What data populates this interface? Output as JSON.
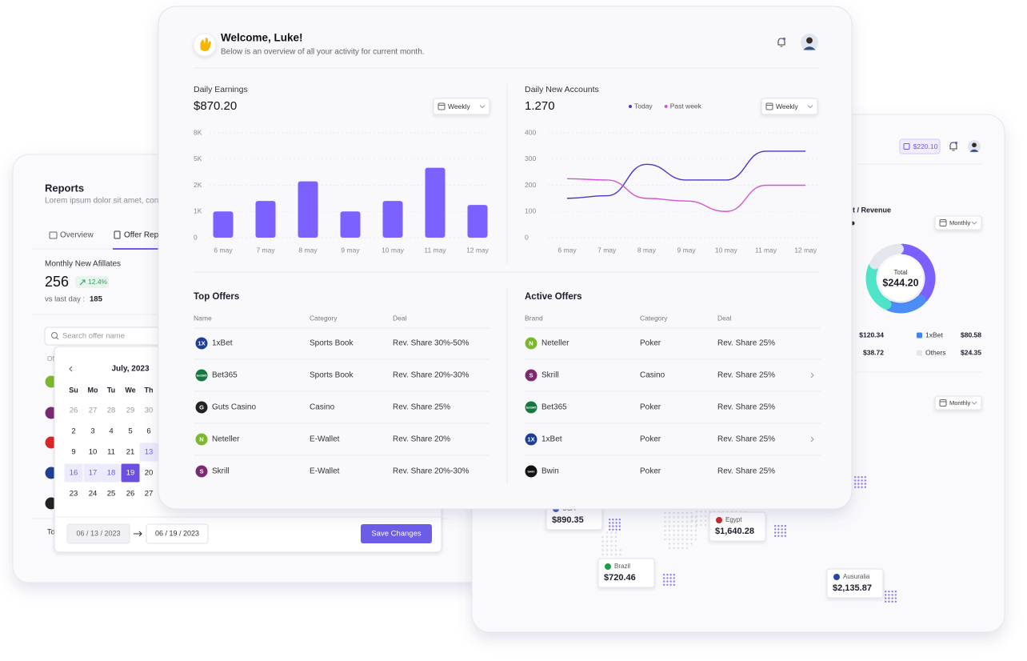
{
  "reports_panel": {
    "title": "Reports",
    "subtitle": "Lorem ipsum dolor sit amet, cons",
    "tabs": [
      "Overview",
      "Offer Repo"
    ],
    "metric_label": "Monthly New Afillates",
    "metric_value": "256",
    "metric_change": "12.4%",
    "compare_label": "vs last day :",
    "compare_value": "185",
    "search_placeholder": "Search offer name",
    "column_fragment": "Of",
    "footer_fragment": "To"
  },
  "date_picker": {
    "month": "July, 2023",
    "weekdays": [
      "Su",
      "Mo",
      "Tu",
      "We",
      "Th"
    ],
    "weeks": [
      [
        "26",
        "27",
        "28",
        "29",
        "30"
      ],
      [
        "2",
        "3",
        "4",
        "5",
        "6"
      ],
      [
        "9",
        "10",
        "11",
        "21",
        "13"
      ],
      [
        "16",
        "17",
        "18",
        "19",
        "20"
      ],
      [
        "23",
        "24",
        "25",
        "26",
        "27"
      ]
    ],
    "range_start": "06 / 13 / 2023",
    "range_end": "06 / 19 / 2023",
    "save_button": "Save Changes"
  },
  "dashboard": {
    "greeting": "Welcome, Luke!",
    "subtitle": "Below is an overview of all your activity for current month.",
    "earnings": {
      "type": "bar",
      "title": "Daily Earnings",
      "total": "$870.20",
      "period": "Weekly",
      "categories": [
        "6 may",
        "7 may",
        "8 may",
        "9 may",
        "10 may",
        "11 may",
        "12 may"
      ],
      "values": [
        1000,
        1400,
        2450,
        1000,
        1400,
        4000,
        1250
      ],
      "color": "#7b61ff",
      "ylim": [
        0,
        8000
      ],
      "yticks": [
        0,
        {
          "value": 1000,
          "label": "1K"
        },
        {
          "value": 2000,
          "label": "2K"
        },
        {
          "value": 5000,
          "label": "5K"
        },
        {
          "value": 8000,
          "label": "8K"
        }
      ]
    },
    "accounts": {
      "type": "line",
      "title": "Daily New Accounts",
      "total": "1.270",
      "period": "Weekly",
      "categories": [
        "6 may",
        "7 may",
        "8 may",
        "9 may",
        "10 may",
        "11 may",
        "12 may"
      ],
      "series": [
        {
          "name": "Today",
          "color": "#4a38c7",
          "values": [
            150,
            160,
            280,
            220,
            220,
            330,
            330
          ]
        },
        {
          "name": "Past week",
          "color": "#d653d6",
          "values": [
            225,
            220,
            150,
            140,
            100,
            200,
            200
          ]
        }
      ],
      "ylim": [
        0,
        400
      ],
      "yticks": [
        0,
        100,
        200,
        300,
        400
      ]
    },
    "top_offers": {
      "title": "Top Offers",
      "columns": [
        "Name",
        "Category",
        "Deal"
      ],
      "rows": [
        [
          "1xBet",
          "Sports Book",
          "Rev. Share 30%-50%"
        ],
        [
          "Bet365",
          "Sports Book",
          "Rev. Share 20%-30%"
        ],
        [
          "Guts Casino",
          "Casino",
          "Rev. Share 25%"
        ],
        [
          "Neteller",
          "E-Wallet",
          "Rev. Share 20%"
        ],
        [
          "Skrill",
          "E-Wallet",
          "Rev. Share 20%-30%"
        ]
      ]
    },
    "active_offers": {
      "title": "Active Offers",
      "columns": [
        "Brand",
        "Category",
        "Deal"
      ],
      "rows": [
        [
          "Neteller",
          "Poker",
          "Rev. Share 25%"
        ],
        [
          "Skrill",
          "Casino",
          "Rev. Share 25%"
        ],
        [
          "Bet365",
          "Poker",
          "Rev. Share 25%"
        ],
        [
          "1xBet",
          "Poker",
          "Rev. Share 25%"
        ],
        [
          "Bwin",
          "Poker",
          "Rev. Share 25%"
        ]
      ]
    }
  },
  "brand_logos": [
    {
      "brand": "1xBet",
      "glyph": "1X",
      "color": "#1f3f94"
    },
    {
      "brand": "Bet365",
      "glyph": "bet365",
      "color": "#127a3f"
    },
    {
      "brand": "Guts Casino",
      "glyph": "G",
      "color": "#222222"
    },
    {
      "brand": "Neteller",
      "glyph": "N",
      "color": "#7cb82f"
    },
    {
      "brand": "Skrill",
      "glyph": "S",
      "color": "#7b2a72"
    },
    {
      "brand": "Bwin",
      "glyph": "bwin",
      "color": "#111111"
    }
  ],
  "revenue_panel": {
    "balance": "$220.10",
    "title_fragment": "t / Revenue",
    "period": "Monthly",
    "donut": {
      "type": "pie",
      "center_label": "Total",
      "center_value": "$244.20",
      "values": [
        37,
        20,
        25,
        18
      ],
      "colors": [
        "#7b61ff",
        "#4c8df6",
        "#4fe3c8",
        "#e4e6ee"
      ]
    },
    "legend": [
      {
        "left_value": "$120.34",
        "name": "1xBet",
        "value": "$80.58",
        "color": "#3f83f8"
      },
      {
        "left_value": "$38.72",
        "name": "Others",
        "value": "$24.35",
        "color": "#e4e6ee"
      }
    ],
    "map_period": "Monthly",
    "regions": [
      {
        "name": "USA",
        "value": "$890.35",
        "flag": "#3c5bb5"
      },
      {
        "name": "Egypt",
        "value": "$1,640.28",
        "flag": "#c8252c"
      },
      {
        "name": "Brazil",
        "value": "$720.46",
        "flag": "#1f9d47"
      },
      {
        "name": "Ausuralia",
        "value": "$2,135.87",
        "flag": "#2747a8"
      }
    ]
  }
}
